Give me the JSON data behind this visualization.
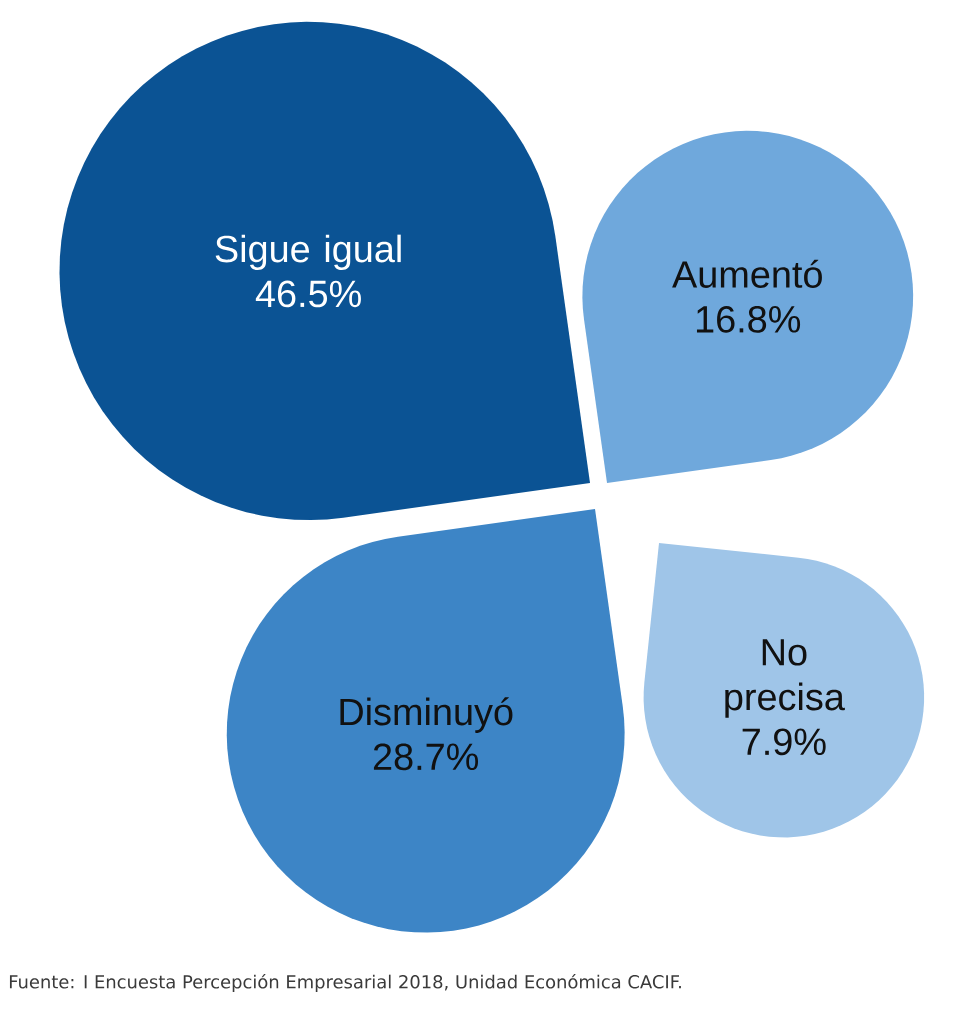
{
  "chart_data": {
    "type": "other",
    "categories": [
      "Sigue igual",
      "Aumentó",
      "Disminuyó",
      "No precisa"
    ],
    "values": [
      46.5,
      16.8,
      28.7,
      7.9
    ],
    "value_labels": [
      "46.5%",
      "16.8%",
      "28.7%",
      "7.9%"
    ],
    "colors": [
      "#0b5394",
      "#6fa8dc",
      "#3d85c6",
      "#9fc5e8"
    ],
    "annotations": [
      "Fuente: I Encuesta Percepción Empresarial 2018, Unidad Económica CACIF."
    ]
  }
}
